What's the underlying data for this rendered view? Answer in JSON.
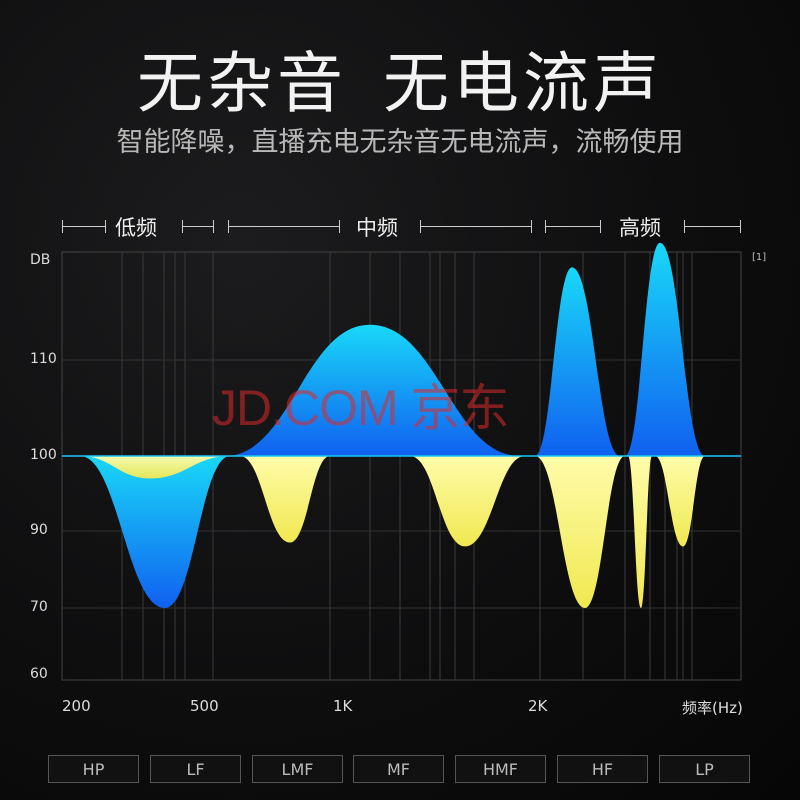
{
  "header": {
    "title_parts": [
      "无杂音",
      "无电流声"
    ],
    "subtitle": "智能降噪，直播充电无杂音无电流声，流畅使用"
  },
  "bands": [
    "低频",
    "中频",
    "高频"
  ],
  "note": "[1]",
  "watermark": "JD.COM 京东",
  "buttons": [
    "HP",
    "LF",
    "LMF",
    "MF",
    "HMF",
    "HF",
    "LP"
  ],
  "chart_data": {
    "type": "area",
    "ylabel": "DB",
    "xlabel": "频率(Hz)",
    "y_ticks": [
      "110",
      "100",
      "90",
      "70",
      "60"
    ],
    "x_ticks": [
      "200",
      "500",
      "1K",
      "2K"
    ],
    "baseline": 100,
    "colors": {
      "blue": "#19c8f5",
      "blue_deep": "#1060f0",
      "yellow": "#f5f07a"
    },
    "blue_regions": [
      {
        "band": "low",
        "peak_db": 70,
        "direction": "down"
      },
      {
        "band": "mid",
        "peak_db": 116,
        "direction": "up"
      },
      {
        "band": "high",
        "peak_db": 123,
        "direction": "up"
      },
      {
        "band": "high",
        "peak_db": 126,
        "direction": "up"
      }
    ],
    "yellow_regions": [
      {
        "band": "low",
        "peak_db": 97,
        "direction": "down"
      },
      {
        "band": "mid",
        "peak_db": 87,
        "direction": "down"
      },
      {
        "band": "mid",
        "peak_db": 86,
        "direction": "down"
      },
      {
        "band": "high",
        "peak_db": 70,
        "direction": "down"
      },
      {
        "band": "high",
        "peak_db": 70,
        "direction": "down"
      },
      {
        "band": "high",
        "peak_db": 86,
        "direction": "down"
      }
    ],
    "grid": true
  }
}
